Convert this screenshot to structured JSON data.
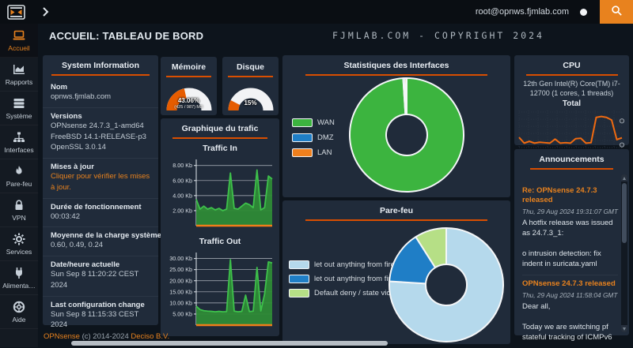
{
  "topbar": {
    "user": "root@opnws.fjmlab.com"
  },
  "header": {
    "title": "ACCUEIL: TABLEAU DE BORD",
    "banner": "FJMLAB.COM - COPYRIGHT 2024"
  },
  "sidebar": {
    "items": [
      {
        "label": "Accueil",
        "icon": "laptop-icon"
      },
      {
        "label": "Rapports",
        "icon": "area-chart-icon"
      },
      {
        "label": "Système",
        "icon": "server-icon"
      },
      {
        "label": "Interfaces",
        "icon": "sitemap-icon"
      },
      {
        "label": "Pare-feu",
        "icon": "fire-icon"
      },
      {
        "label": "VPN",
        "icon": "lock-icon"
      },
      {
        "label": "Services",
        "icon": "gear-icon"
      },
      {
        "label": "Alimenta…",
        "icon": "plug-icon"
      },
      {
        "label": "Aide",
        "icon": "life-ring-icon"
      }
    ]
  },
  "footer": {
    "brand": "OPNsense",
    "copyright": "(c) 2014-2024",
    "company": "Deciso B.V."
  },
  "system_info": {
    "title": "System Information",
    "rows": [
      {
        "label": "Nom",
        "value": "opnws.fjmlab.com"
      },
      {
        "label": "Versions",
        "value": "OPNsense 24.7.3_1-amd64\nFreeBSD 14.1-RELEASE-p3\nOpenSSL 3.0.14"
      },
      {
        "label": "Mises à jour",
        "value": "Cliquer pour vérifier les mises à jour."
      },
      {
        "label": "Durée de fonctionnement",
        "value": "00:03:42"
      },
      {
        "label": "Moyenne de la charge système",
        "value": "0.60, 0.49, 0.24"
      },
      {
        "label": "Date/heure actuelle",
        "value": "Sun Sep 8 11:20:22 CEST 2024"
      },
      {
        "label": "Last configuration change",
        "value": "Sun Sep 8 11:15:33 CEST 2024"
      }
    ]
  },
  "panels": {
    "memory_title": "Mémoire",
    "disk_title": "Disque",
    "traffic_title": "Graphique du trafic",
    "interfaces_title": "Statistiques des Interfaces",
    "firewall_title": "Pare-feu",
    "cpu_title": "CPU",
    "announcements_title": "Announcements"
  },
  "cpu": {
    "model": "12th Gen Intel(R) Core(TM) i7-12700 (1 cores, 1 threads)",
    "series_label": "Total"
  },
  "announcements": {
    "posts": [
      {
        "title": "Re: OPNsense 24.7.3 released",
        "date": "Thu, 29 Aug 2024 19:31:07 GMT",
        "body": "A hotfix release was issued as 24.7.3_1:\n\no intrusion detection: fix indent in suricata.yaml"
      },
      {
        "title": "OPNsense 24.7.3 released",
        "date": "Thu, 29 Aug 2024 11:58:04 GMT",
        "body": "Dear all,\n\nToday we are switching pf stateful tracking of ICMPv6"
      }
    ]
  },
  "chart_data": [
    {
      "id": "memory_gauge",
      "type": "gauge",
      "title": "Mémoire",
      "percent": 43.06,
      "label": "43.06%",
      "sublabel": "(425 / 987) MB",
      "color": "#e65c00",
      "track_color": "#f2f3f5"
    },
    {
      "id": "disk_gauge",
      "type": "gauge",
      "title": "Disque",
      "percent": 15,
      "label": "15%",
      "sublabel": "",
      "color": "#e65c00",
      "track_color": "#f2f3f5"
    },
    {
      "id": "traffic_in",
      "type": "area",
      "title": "Traffic In",
      "tick_values": [
        2,
        4,
        6,
        8
      ],
      "tick_labels": [
        "2.00 Kb",
        "4.00 Kb",
        "6.00 Kb",
        "8.00 Kb"
      ],
      "ylim": [
        0,
        8.6
      ],
      "values": [
        3.5,
        2.2,
        2.6,
        2.2,
        2.4,
        2.1,
        2.3,
        2.0,
        2.2,
        7.0,
        2.3,
        2.2,
        2.6,
        3.0,
        2.8,
        2.4,
        7.4,
        2.1,
        2.4,
        6.6,
        6.2
      ],
      "line_color": "#3ec14b",
      "fill_color": "#2e8a36",
      "baseline_color": "#f07d1a"
    },
    {
      "id": "traffic_out",
      "type": "area",
      "title": "Traffic Out",
      "tick_values": [
        5,
        10,
        15,
        20,
        25,
        30
      ],
      "tick_labels": [
        "5.00 Kb",
        "10.00 Kb",
        "15.00 Kb",
        "20.00 Kb",
        "25.00 Kb",
        "30.00 Kb"
      ],
      "ylim": [
        0,
        32
      ],
      "values": [
        8.5,
        7.0,
        6.5,
        6.3,
        6.2,
        6.0,
        6.2,
        6.0,
        6.1,
        29.5,
        6.3,
        6.0,
        6.2,
        13.5,
        6.1,
        6.3,
        26.0,
        6.4,
        14.0,
        28.5,
        28.0
      ],
      "line_color": "#3ec14b",
      "fill_color": "#2e8a36",
      "baseline_color": "#f07d1a"
    },
    {
      "id": "interfaces_donut",
      "type": "donut",
      "legend": [
        {
          "label": "WAN",
          "color": "#3cb43f"
        },
        {
          "label": "DMZ",
          "color": "#1f7ec6"
        },
        {
          "label": "LAN",
          "color": "#ee7f1d"
        }
      ],
      "values": [
        99.0,
        0.5,
        0.5
      ]
    },
    {
      "id": "firewall_donut",
      "type": "donut",
      "legend": [
        {
          "label": "let out anything from firewall h",
          "color": "#b5d9ec"
        },
        {
          "label": "let out anything from firewall h",
          "color": "#1f7ec6"
        },
        {
          "label": "Default deny / state violation r",
          "color": "#b6df86"
        }
      ],
      "values": [
        76,
        15,
        9
      ]
    },
    {
      "id": "cpu_total",
      "type": "line",
      "label": "Total",
      "ylim": [
        0,
        8
      ],
      "values": [
        2.3,
        1.0,
        1.4,
        1.0,
        1.2,
        1.1,
        1.0,
        1.9,
        1.0,
        1.1,
        1.0,
        2.0,
        2.1,
        1.0,
        1.1,
        6.8,
        7.0,
        6.8,
        6.2,
        1.8,
        2.2
      ],
      "line_color": "#f06a10",
      "markers": [
        6.0,
        0.6
      ]
    }
  ]
}
